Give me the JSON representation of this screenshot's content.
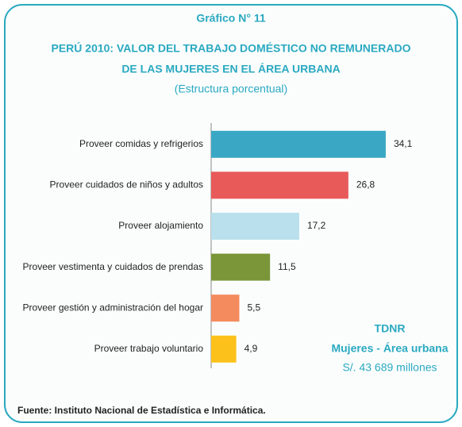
{
  "chart_data": {
    "type": "bar",
    "orientation": "horizontal",
    "title": "Gráfico N° 11",
    "subtitle_lines": [
      "PERÚ 2010: VALOR DEL TRABAJO DOMÉSTICO NO REMUNERADO",
      "DE LAS MUJERES EN EL ÁREA URBANA"
    ],
    "subtitle": "(Estructura porcentual)",
    "categories": [
      "Proveer comidas y refrigerios",
      "Proveer cuidados de niños y adultos",
      "Proveer alojamiento",
      "Proveer vestimenta y cuidados de prendas",
      "Proveer gestión y administración del hogar",
      "Proveer trabajo voluntario"
    ],
    "values": [
      34.1,
      26.8,
      17.2,
      11.5,
      5.5,
      4.9
    ],
    "value_labels": [
      "34,1",
      "26,8",
      "17,2",
      "11,5",
      "5,5",
      "4,9"
    ],
    "colors": [
      "#3aa8c4",
      "#e85a5a",
      "#b9e0ec",
      "#7a9639",
      "#f48b5f",
      "#fcc21b"
    ],
    "annotations": [
      "TDNR",
      "Mujeres - Área urbana",
      "S/. 43 689 millones"
    ],
    "source": "Fuente: Instituto Nacional de Estadística e Informática."
  }
}
